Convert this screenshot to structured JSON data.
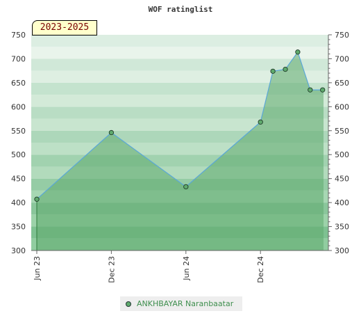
{
  "chart_data": {
    "type": "area",
    "title": "WOF ratinglist",
    "period_label": "2023-2025",
    "ylim": [
      300,
      750
    ],
    "y_ticks": [
      300,
      350,
      400,
      450,
      500,
      550,
      600,
      650,
      700,
      750
    ],
    "x_tick_labels": [
      "Jun 23",
      "Dec 23",
      "Jun 24",
      "Dec 24"
    ],
    "grid": true,
    "legend_position": "bottom",
    "series": [
      {
        "name": "ANKHBAYAR Naranbaatar",
        "color": "#5faa6d",
        "line_color": "#5aa7d8",
        "x": [
          "Jun 23",
          "Dec 23",
          "Jun 24",
          "Dec 24",
          "Jan 25",
          "Feb 25",
          "Mar 25",
          "Apr 25",
          "May 25"
        ],
        "values": [
          407,
          546,
          433,
          568,
          674,
          678,
          714,
          635,
          635
        ]
      }
    ]
  }
}
